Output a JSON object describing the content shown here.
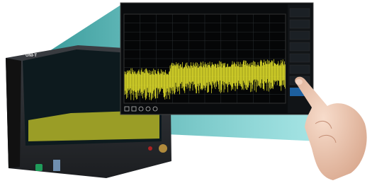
{
  "device": {
    "brand": "UNI-T"
  }
}
